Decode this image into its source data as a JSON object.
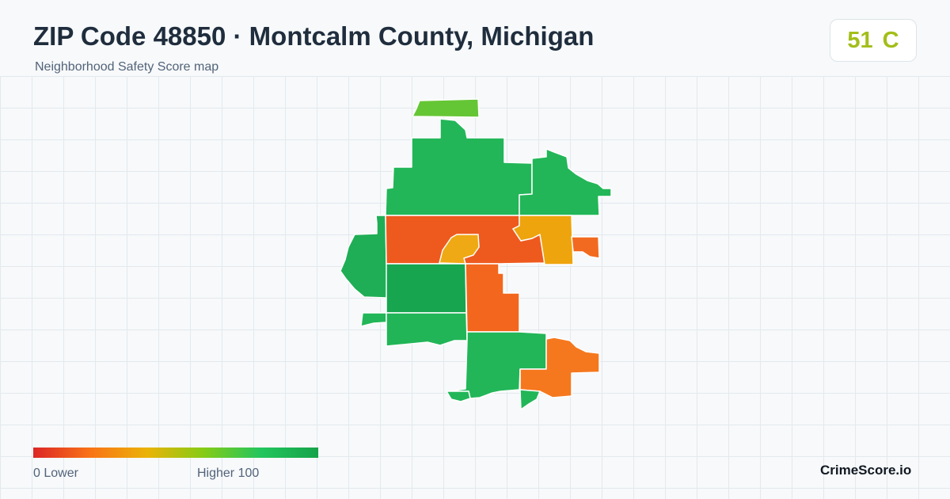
{
  "header": {
    "title": "ZIP Code 48850 · Montcalm County, Michigan",
    "subtitle": "Neighborhood Safety Score map"
  },
  "score": {
    "value": "51",
    "grade": "C",
    "color": "#a3be1a"
  },
  "legend": {
    "low_text": "0  Lower",
    "high_text": "Higher  100",
    "colors": [
      "#dc2626",
      "#f97316",
      "#eab308",
      "#84cc16",
      "#22c55e",
      "#16a34a"
    ]
  },
  "map": {
    "regions": [
      {
        "id": "north-sliver",
        "color": "#65c635"
      },
      {
        "id": "north-main",
        "color": "#22b658"
      },
      {
        "id": "northeast",
        "color": "#22b658"
      },
      {
        "id": "west",
        "color": "#1fae55"
      },
      {
        "id": "west-islet",
        "color": "#22b658"
      },
      {
        "id": "center-red",
        "color": "#ee5a1e"
      },
      {
        "id": "center-yellow-left",
        "color": "#efa914"
      },
      {
        "id": "center-yellow-right",
        "color": "#eea40d"
      },
      {
        "id": "east-orange",
        "color": "#f26a1f"
      },
      {
        "id": "southwest-dark",
        "color": "#17a550"
      },
      {
        "id": "center-south-orange",
        "color": "#f2671d"
      },
      {
        "id": "south-west",
        "color": "#21b558"
      },
      {
        "id": "south-central",
        "color": "#22b658"
      },
      {
        "id": "southeast-orange",
        "color": "#f5781e"
      },
      {
        "id": "south-tail",
        "color": "#22b658"
      },
      {
        "id": "south-tail-left",
        "color": "#22b658"
      }
    ]
  },
  "footer": {
    "brand": "CrimeScore.io"
  }
}
